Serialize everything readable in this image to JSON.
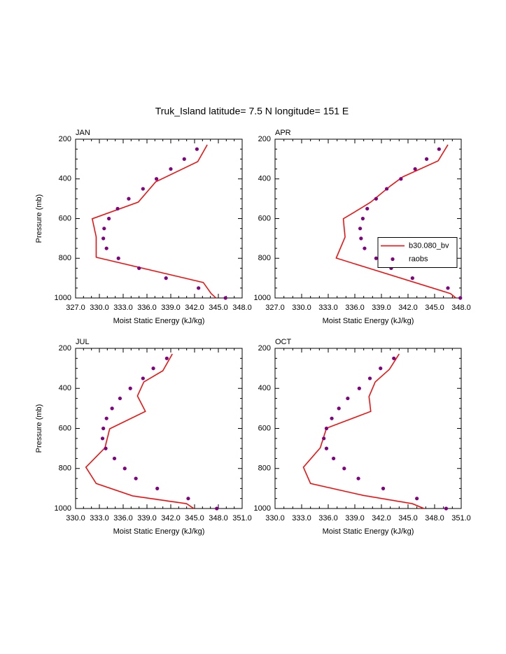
{
  "title": "Truk_Island  latitude= 7.5 N longitude= 151 E",
  "chart_data": [
    {
      "type": "line",
      "panel_label": "JAN",
      "xlabel": "Moist Static Energy (kJ/kg)",
      "ylabel": "Pressure (mb)",
      "xlim": [
        327,
        348
      ],
      "xticks": [
        {
          "value": 327,
          "label": "327.0"
        },
        {
          "value": 330,
          "label": "330.0"
        },
        {
          "value": 333,
          "label": "333.0"
        },
        {
          "value": 336,
          "label": "336.0"
        },
        {
          "value": 339,
          "label": "339.0"
        },
        {
          "value": 342,
          "label": "342.0"
        },
        {
          "value": 345,
          "label": "345.0"
        },
        {
          "value": 348,
          "label": "348.0"
        }
      ],
      "ylim": [
        1000,
        200
      ],
      "yticks": [
        200,
        400,
        600,
        800,
        1000
      ],
      "series": [
        {
          "style": "line",
          "color": "#ff0000",
          "x": [
            343.6,
            342.4,
            337.1,
            334.9,
            329.1,
            329.6,
            329.6,
            343.1,
            344.1,
            344.7
          ],
          "y": [
            228,
            313,
            415,
            517,
            601,
            693,
            795,
            922,
            978,
            1000
          ]
        },
        {
          "style": "markers",
          "color": "#800080",
          "x": [
            342.3,
            340.7,
            339.0,
            337.2,
            335.5,
            333.7,
            332.3,
            331.2,
            330.6,
            330.5,
            330.9,
            332.4,
            335.0,
            338.4,
            342.5,
            345.9
          ],
          "y": [
            250,
            300,
            350,
            400,
            450,
            500,
            550,
            600,
            650,
            700,
            750,
            800,
            850,
            900,
            950,
            1000
          ]
        }
      ]
    },
    {
      "type": "line",
      "panel_label": "APR",
      "xlabel": "Moist Static Energy (kJ/kg)",
      "xlim": [
        327,
        348
      ],
      "xticks": [
        {
          "value": 327,
          "label": "327.0"
        },
        {
          "value": 330,
          "label": "330.0"
        },
        {
          "value": 333,
          "label": "333.0"
        },
        {
          "value": 336,
          "label": "336.0"
        },
        {
          "value": 339,
          "label": "339.0"
        },
        {
          "value": 342,
          "label": "342.0"
        },
        {
          "value": 345,
          "label": "345.0"
        },
        {
          "value": 348,
          "label": "348.0"
        }
      ],
      "ylim": [
        1000,
        200
      ],
      "yticks": [
        200,
        400,
        600,
        800,
        1000
      ],
      "legend": "center right",
      "series": [
        {
          "name": "b30.080_bv",
          "style": "line",
          "color": "#ff0000",
          "x": [
            346.5,
            345.4,
            341.4,
            340.0,
            337.8,
            336.9,
            334.7,
            334.9,
            333.9,
            346.8,
            347.4
          ],
          "y": [
            228,
            309,
            390,
            436,
            517,
            542,
            601,
            693,
            799,
            978,
            1000
          ]
        },
        {
          "name": "raobs",
          "style": "markers",
          "color": "#800080",
          "x": [
            345.5,
            344.1,
            342.8,
            341.2,
            339.6,
            338.4,
            337.4,
            336.9,
            336.6,
            336.7,
            337.1,
            338.4,
            340.1,
            342.5,
            346.5,
            347.9
          ],
          "y": [
            250,
            300,
            350,
            400,
            450,
            500,
            550,
            600,
            650,
            700,
            750,
            800,
            850,
            900,
            950,
            1000
          ]
        }
      ]
    },
    {
      "type": "line",
      "panel_label": "JUL",
      "xlabel": "Moist Static Energy (kJ/kg)",
      "ylabel": "Pressure (mb)",
      "xlim": [
        330,
        351
      ],
      "xticks": [
        {
          "value": 330,
          "label": "330.0"
        },
        {
          "value": 333,
          "label": "333.0"
        },
        {
          "value": 336,
          "label": "336.0"
        },
        {
          "value": 339,
          "label": "339.0"
        },
        {
          "value": 342,
          "label": "342.0"
        },
        {
          "value": 345,
          "label": "345.0"
        },
        {
          "value": 348,
          "label": "348.0"
        },
        {
          "value": 351,
          "label": "351.0"
        }
      ],
      "ylim": [
        1000,
        200
      ],
      "yticks": [
        200,
        400,
        600,
        800,
        1000
      ],
      "series": [
        {
          "style": "line",
          "color": "#ff0000",
          "x": [
            342.2,
            341.0,
            338.6,
            337.8,
            338.8,
            334.3,
            333.7,
            331.3,
            332.6,
            337.2,
            344.0,
            344.9
          ],
          "y": [
            228,
            312,
            368,
            438,
            515,
            602,
            697,
            794,
            875,
            937,
            976,
            1000
          ]
        },
        {
          "style": "markers",
          "color": "#800080",
          "x": [
            341.5,
            339.8,
            338.5,
            336.9,
            335.6,
            334.6,
            333.9,
            333.5,
            333.4,
            333.8,
            334.9,
            336.2,
            337.6,
            340.3,
            344.2,
            347.8
          ],
          "y": [
            250,
            300,
            350,
            400,
            450,
            500,
            550,
            600,
            650,
            700,
            750,
            800,
            850,
            900,
            950,
            1000
          ]
        }
      ]
    },
    {
      "type": "line",
      "panel_label": "OCT",
      "xlabel": "Moist Static Energy (kJ/kg)",
      "xlim": [
        330,
        351
      ],
      "xticks": [
        {
          "value": 330,
          "label": "330.0"
        },
        {
          "value": 333,
          "label": "333.0"
        },
        {
          "value": 336,
          "label": "336.0"
        },
        {
          "value": 339,
          "label": "339.0"
        },
        {
          "value": 342,
          "label": "342.0"
        },
        {
          "value": 345,
          "label": "345.0"
        },
        {
          "value": 348,
          "label": "348.0"
        },
        {
          "value": 351,
          "label": "351.0"
        }
      ],
      "ylim": [
        1000,
        200
      ],
      "yticks": [
        200,
        400,
        600,
        800,
        1000
      ],
      "series": [
        {
          "style": "line",
          "color": "#ff0000",
          "x": [
            344.0,
            342.9,
            341.3,
            340.6,
            340.8,
            335.8,
            335.1,
            333.2,
            334.0,
            339.9,
            345.5,
            346.8
          ],
          "y": [
            228,
            305,
            368,
            441,
            515,
            599,
            697,
            794,
            875,
            934,
            976,
            1000
          ]
        },
        {
          "style": "markers",
          "color": "#800080",
          "x": [
            343.4,
            341.9,
            340.7,
            339.5,
            338.2,
            337.2,
            336.4,
            335.8,
            335.5,
            335.8,
            336.6,
            337.8,
            339.4,
            342.2,
            346.0,
            349.3
          ],
          "y": [
            250,
            300,
            350,
            400,
            450,
            500,
            550,
            600,
            650,
            700,
            750,
            800,
            850,
            900,
            950,
            1000
          ]
        }
      ]
    }
  ]
}
